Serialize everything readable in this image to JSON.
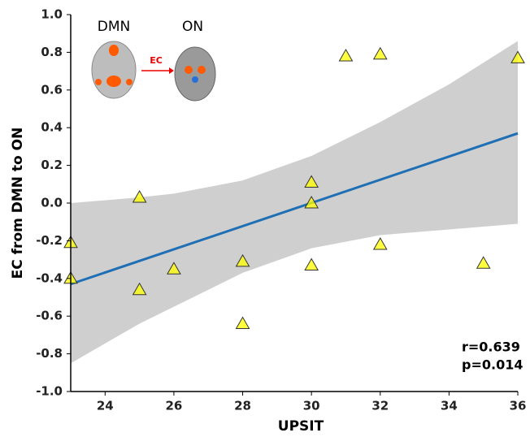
{
  "chart_data": {
    "type": "scatter",
    "y_label": "EC from DMN to ON",
    "x_label": "UPSIT",
    "x": [
      23,
      23,
      25,
      25,
      26,
      28,
      28,
      30,
      30,
      30,
      31,
      32,
      32,
      35,
      36
    ],
    "values": [
      -0.21,
      -0.4,
      0.03,
      -0.46,
      -0.35,
      -0.31,
      -0.64,
      0.11,
      0.0,
      -0.33,
      0.78,
      0.79,
      -0.22,
      -0.32,
      0.77
    ],
    "color": "#ffff00",
    "fit": {
      "x": [
        23,
        36
      ],
      "y": [
        -0.43,
        0.37
      ],
      "color": "#1f6fb5"
    },
    "band": {
      "x": [
        23,
        25,
        26,
        28,
        30,
        32,
        34,
        36
      ],
      "upper": [
        0.0,
        0.03,
        0.05,
        0.12,
        0.25,
        0.43,
        0.63,
        0.86
      ],
      "lower": [
        -0.85,
        -0.64,
        -0.55,
        -0.37,
        -0.24,
        -0.17,
        -0.14,
        -0.11
      ],
      "color": "#cfcfcf"
    },
    "xlim": [
      23,
      36
    ],
    "ylim": [
      -1.0,
      1.0
    ],
    "xticks": [
      24,
      26,
      28,
      30,
      32,
      34,
      36
    ],
    "yticks": [
      {
        "value": 1.0,
        "label": "1.0"
      },
      0.8,
      0.6,
      0.4,
      0.2,
      {
        "value": 0.0,
        "label": "0.0"
      },
      -0.2,
      -0.4,
      -0.6,
      -0.8,
      {
        "value": -1.0,
        "label": "-1.0"
      }
    ],
    "annotations": [
      "r=0.639",
      "p=0.014"
    ],
    "inset": {
      "left": "DMN",
      "right": "ON",
      "arrow": "EC"
    }
  }
}
